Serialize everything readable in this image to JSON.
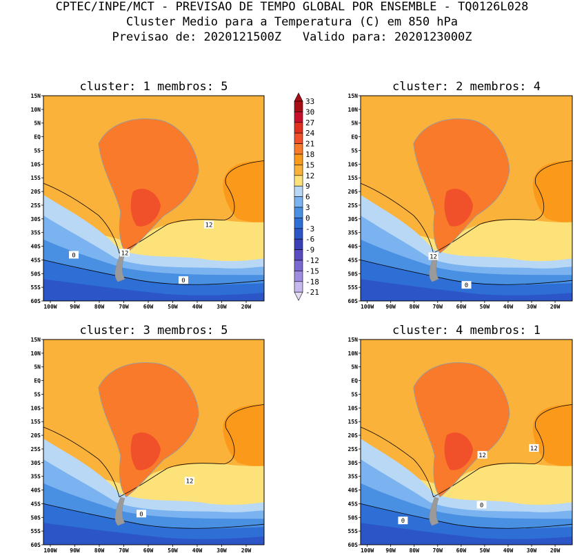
{
  "header": {
    "line1": "CPTEC/INPE/MCT - PREVISAO DE TEMPO GLOBAL POR ENSEMBLE - TQ0126L028",
    "line2": "Cluster Medio para a Temperatura (C) em 850 hPa",
    "line3": "Previsao de: 2020121500Z   Valido para: 2020123000Z"
  },
  "panels": [
    {
      "title": "cluster: 1   membros: 5",
      "labels": [
        "12",
        "12",
        "0",
        "0"
      ]
    },
    {
      "title": "cluster: 2   membros: 4",
      "labels": [
        "12",
        "0"
      ]
    },
    {
      "title": "cluster: 3   membros: 5",
      "labels": [
        "12",
        "0"
      ]
    },
    {
      "title": "cluster: 4   membros: 1",
      "labels": [
        "12",
        "12",
        "0",
        "0"
      ]
    }
  ],
  "lat_ticks": [
    "15N",
    "10N",
    "5N",
    "EQ",
    "5S",
    "10S",
    "15S",
    "20S",
    "25S",
    "30S",
    "35S",
    "40S",
    "45S",
    "50S",
    "55S",
    "60S"
  ],
  "lon_ticks": [
    "100W",
    "90W",
    "80W",
    "70W",
    "60W",
    "50W",
    "40W",
    "30W",
    "20W"
  ],
  "colorbar": {
    "labels": [
      "33",
      "30",
      "27",
      "24",
      "21",
      "18",
      "15",
      "12",
      "9",
      "6",
      "3",
      "0",
      "-3",
      "-6",
      "-9",
      "-12",
      "-15",
      "-18",
      "-21"
    ],
    "colors": [
      "#a50f15",
      "#c8102e",
      "#e0301e",
      "#f0502a",
      "#f97a2a",
      "#fb9a1a",
      "#fbb23a",
      "#fde27a",
      "#b8d8f5",
      "#7ab3ef",
      "#4a90e2",
      "#2e6fd6",
      "#2c55c8",
      "#3b3fb8",
      "#5a4cc0",
      "#7b68d0",
      "#9f8ee0",
      "#c6b9ee"
    ],
    "units": "C"
  }
}
